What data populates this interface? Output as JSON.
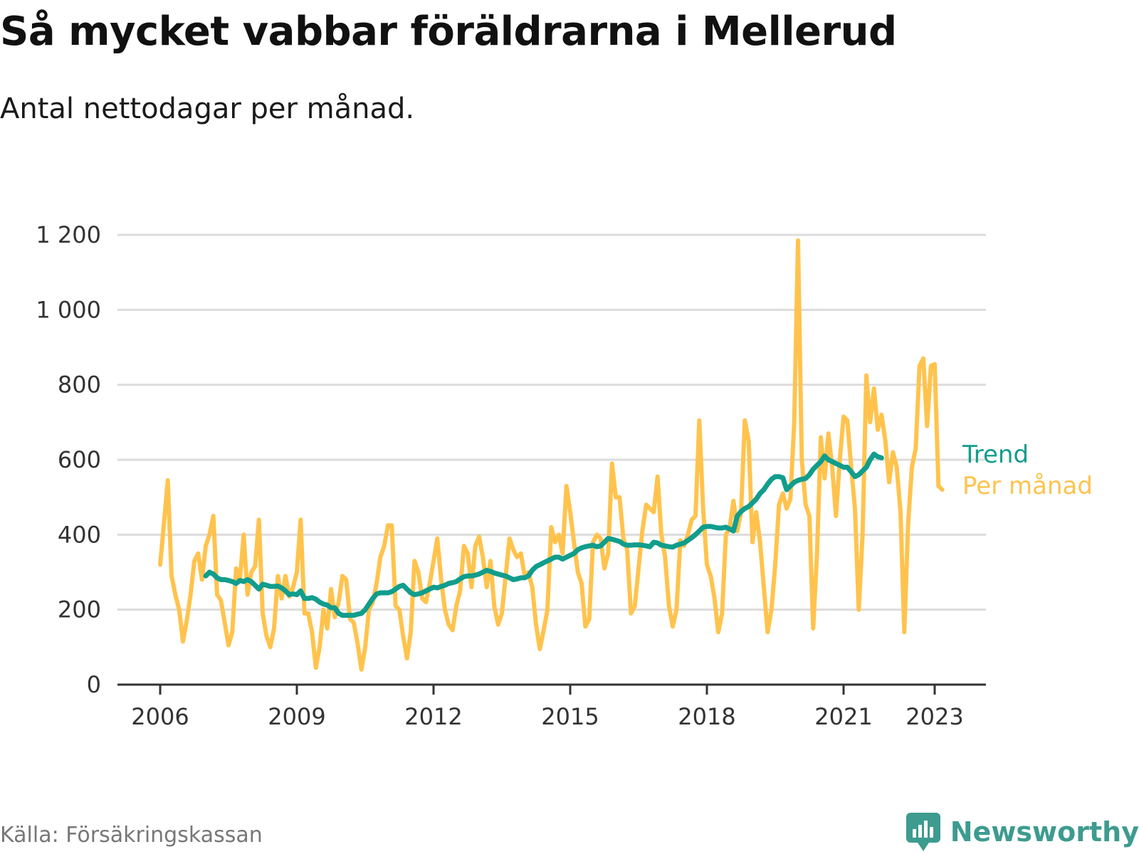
{
  "title": "Så mycket vabbar föräldrarna i Mellerud",
  "subtitle": "Antal nettodagar per månad.",
  "source": "Källa: Försäkringskassan",
  "brand": {
    "name": "Newsworthy",
    "icon": "bar-chart-speech-bubble-icon",
    "color": "#3d9b8f"
  },
  "chart_data": {
    "type": "line",
    "ylim": [
      0,
      1200
    ],
    "yticks": [
      0,
      200,
      400,
      600,
      800,
      1000,
      1200
    ],
    "ytick_labels": [
      "0",
      "200",
      "400",
      "600",
      "800",
      "1 000",
      "1 200"
    ],
    "xlim": [
      "2006-01",
      "2023-05"
    ],
    "xticks": [
      "2006-01",
      "2009-01",
      "2012-01",
      "2015-01",
      "2018-01",
      "2021-01",
      "2023-01"
    ],
    "xtick_labels": [
      "2006",
      "2009",
      "2012",
      "2015",
      "2018",
      "2021",
      "2023"
    ],
    "grid": true,
    "series": [
      {
        "name": "Per månad",
        "color": "#ffc34d",
        "start": "2006-01",
        "values": [
          320,
          430,
          545,
          290,
          240,
          200,
          115,
          170,
          240,
          330,
          350,
          280,
          370,
          400,
          450,
          240,
          225,
          165,
          105,
          140,
          310,
          280,
          400,
          240,
          300,
          315,
          440,
          190,
          130,
          100,
          150,
          290,
          230,
          290,
          235,
          260,
          300,
          440,
          190,
          190,
          140,
          45,
          100,
          200,
          150,
          255,
          180,
          220,
          290,
          280,
          175,
          165,
          110,
          40,
          100,
          200,
          220,
          270,
          340,
          370,
          425,
          425,
          210,
          200,
          130,
          70,
          140,
          330,
          300,
          230,
          220,
          270,
          330,
          390,
          280,
          200,
          160,
          145,
          210,
          250,
          370,
          350,
          260,
          370,
          395,
          340,
          260,
          330,
          210,
          160,
          190,
          290,
          390,
          360,
          340,
          350,
          290,
          300,
          260,
          160,
          95,
          145,
          200,
          420,
          380,
          400,
          350,
          530,
          460,
          380,
          300,
          270,
          155,
          175,
          380,
          400,
          390,
          310,
          350,
          590,
          500,
          500,
          390,
          360,
          190,
          210,
          310,
          410,
          480,
          470,
          460,
          555,
          400,
          340,
          210,
          155,
          200,
          385,
          370,
          400,
          440,
          450,
          705,
          470,
          320,
          290,
          230,
          140,
          190,
          400,
          420,
          490,
          410,
          460,
          705,
          650,
          380,
          460,
          380,
          260,
          140,
          200,
          320,
          480,
          510,
          470,
          495,
          700,
          1185,
          600,
          480,
          450,
          150,
          350,
          660,
          550,
          670,
          580,
          450,
          600,
          715,
          705,
          580,
          470,
          200,
          400,
          825,
          700,
          790,
          680,
          720,
          650,
          540,
          620,
          580,
          460,
          140,
          430,
          580,
          630,
          850,
          870,
          690,
          850,
          855,
          530,
          520
        ]
      },
      {
        "name": "Trend",
        "color": "#119d8c",
        "start": "2007-01",
        "values": [
          290,
          300,
          295,
          285,
          280,
          280,
          278,
          275,
          270,
          278,
          275,
          280,
          275,
          265,
          255,
          268,
          265,
          262,
          262,
          263,
          258,
          250,
          240,
          242,
          240,
          250,
          230,
          230,
          232,
          228,
          220,
          215,
          212,
          205,
          205,
          190,
          185,
          185,
          185,
          185,
          188,
          190,
          200,
          215,
          230,
          242,
          245,
          245,
          245,
          248,
          255,
          262,
          265,
          255,
          245,
          240,
          242,
          245,
          250,
          255,
          260,
          258,
          262,
          265,
          270,
          272,
          275,
          282,
          288,
          290,
          290,
          292,
          295,
          300,
          305,
          302,
          298,
          295,
          292,
          290,
          285,
          280,
          282,
          285,
          285,
          290,
          305,
          315,
          320,
          325,
          330,
          335,
          340,
          340,
          335,
          340,
          345,
          350,
          360,
          365,
          368,
          370,
          372,
          368,
          370,
          380,
          390,
          388,
          385,
          382,
          375,
          372,
          372,
          373,
          373,
          372,
          370,
          368,
          380,
          378,
          372,
          370,
          368,
          367,
          372,
          375,
          378,
          385,
          392,
          400,
          410,
          420,
          422,
          422,
          420,
          418,
          418,
          420,
          415,
          410,
          450,
          462,
          470,
          475,
          485,
          495,
          510,
          520,
          535,
          548,
          555,
          555,
          552,
          520,
          530,
          540,
          545,
          548,
          550,
          560,
          575,
          585,
          595,
          610,
          600,
          595,
          590,
          585,
          580,
          580,
          568,
          555,
          560,
          570,
          580,
          600,
          615,
          608,
          605
        ]
      }
    ]
  }
}
